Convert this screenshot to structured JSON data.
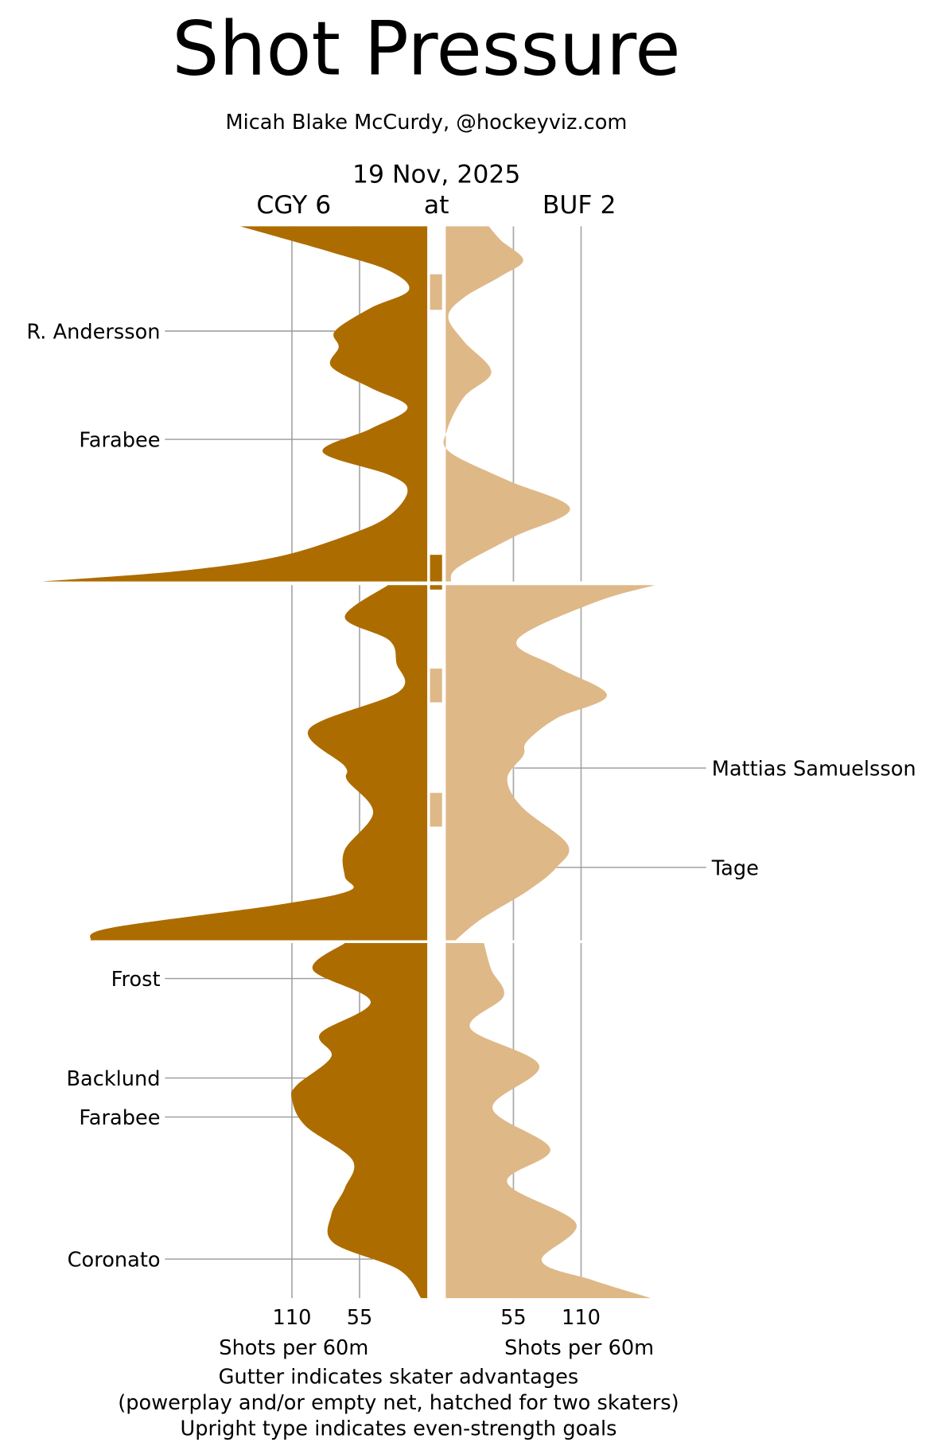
{
  "title": "Shot Pressure",
  "subtitle": "Micah Blake McCurdy, @hockeyviz.com",
  "date": "19 Nov, 2025",
  "away_label": "CGY 6",
  "at_label": "at",
  "home_label": "BUF 2",
  "footer": [
    "Gutter indicates skater advantages",
    "(powerplay and/or empty net, hatched for two skaters)",
    "Upright type indicates even-strength goals"
  ],
  "chart_data": {
    "type": "area",
    "title": "Shot Pressure",
    "xlabel_left": "Shots per 60m",
    "xlabel_right": "Shots per 60m",
    "x_ticks_left": [
      "110",
      "55"
    ],
    "x_ticks_right": [
      "55",
      "110"
    ],
    "tick_values": [
      110,
      55
    ],
    "periods": 3,
    "period_minutes": 20,
    "grid": true,
    "colors": {
      "CGY": "#AD6C00",
      "BUF": "#DFB887"
    },
    "series": [
      {
        "team": "CGY",
        "side": "left",
        "periods": [
          [
            [
              0,
              152
            ],
            [
              1.5,
              76
            ],
            [
              2.5,
              31
            ],
            [
              3.6,
              15
            ],
            [
              4.6,
              46
            ],
            [
              5.9,
              75
            ],
            [
              6.8,
              72
            ],
            [
              7.9,
              78
            ],
            [
              9.1,
              46
            ],
            [
              10.2,
              16
            ],
            [
              11.4,
              46
            ],
            [
              12.7,
              85
            ],
            [
              14.0,
              31
            ],
            [
              14.9,
              16
            ],
            [
              16.3,
              31
            ],
            [
              17.3,
              61
            ],
            [
              18.6,
              121
            ],
            [
              19.4,
              200
            ],
            [
              20,
              313
            ]
          ],
          [
            [
              0,
              32
            ],
            [
              1.8,
              67
            ],
            [
              3.1,
              31
            ],
            [
              4.4,
              25
            ],
            [
              6.0,
              23
            ],
            [
              8.1,
              96
            ],
            [
              10.2,
              67
            ],
            [
              11.0,
              65
            ],
            [
              12.8,
              44
            ],
            [
              14.9,
              67
            ],
            [
              16.4,
              67
            ],
            [
              17.2,
              63
            ],
            [
              18.0,
              121
            ],
            [
              19.3,
              257
            ],
            [
              20,
              274
            ]
          ],
          [
            [
              0,
              67
            ],
            [
              1.5,
              93
            ],
            [
              3.3,
              46
            ],
            [
              5.1,
              87
            ],
            [
              6.4,
              78
            ],
            [
              8.0,
              106
            ],
            [
              8.8,
              110
            ],
            [
              10.3,
              99
            ],
            [
              12.2,
              61
            ],
            [
              13.8,
              67
            ],
            [
              15.3,
              78
            ],
            [
              16.9,
              76
            ],
            [
              18.4,
              23
            ],
            [
              20,
              5
            ]
          ]
        ]
      },
      {
        "team": "BUF",
        "side": "right",
        "periods": [
          [
            [
              0,
              35
            ],
            [
              0.8,
              45
            ],
            [
              1.9,
              63
            ],
            [
              2.8,
              45
            ],
            [
              4.0,
              15
            ],
            [
              5.1,
              2
            ],
            [
              6.5,
              15
            ],
            [
              8.2,
              37
            ],
            [
              9.6,
              15
            ],
            [
              11.5,
              1
            ],
            [
              12.7,
              3
            ],
            [
              14.3,
              50
            ],
            [
              15.9,
              101
            ],
            [
              17.5,
              55
            ],
            [
              19.2,
              10
            ],
            [
              20,
              4
            ]
          ],
          [
            [
              0,
              170
            ],
            [
              1.0,
              120
            ],
            [
              3.1,
              58
            ],
            [
              4.6,
              90
            ],
            [
              6.2,
              131
            ],
            [
              7.5,
              90
            ],
            [
              8.8,
              66
            ],
            [
              9.6,
              63
            ],
            [
              10.9,
              50
            ],
            [
              12.5,
              62
            ],
            [
              14.6,
              99
            ],
            [
              15.9,
              90
            ],
            [
              17.2,
              67
            ],
            [
              18.8,
              29
            ],
            [
              20,
              8
            ]
          ],
          [
            [
              0,
              31
            ],
            [
              1.5,
              37
            ],
            [
              3.0,
              47
            ],
            [
              4.8,
              20
            ],
            [
              6.9,
              76
            ],
            [
              9.3,
              38
            ],
            [
              11.6,
              85
            ],
            [
              13.5,
              50
            ],
            [
              15.8,
              106
            ],
            [
              17.9,
              78
            ],
            [
              19.0,
              120
            ],
            [
              20,
              167
            ]
          ]
        ]
      }
    ],
    "advantages": [
      {
        "team": "BUF",
        "period": 1,
        "start": 2.7,
        "end": 4.7
      },
      {
        "team": "CGY",
        "period": 1,
        "start": 18.5,
        "end": 20
      },
      {
        "team": "CGY",
        "period": 2,
        "start": 0,
        "end": 0.25
      },
      {
        "team": "BUF",
        "period": 2,
        "start": 4.7,
        "end": 6.6
      },
      {
        "team": "BUF",
        "period": 2,
        "start": 11.7,
        "end": 13.6
      }
    ],
    "goals": [
      {
        "team": "CGY",
        "player": "R. Andersson",
        "period": 1,
        "minute": 5.9
      },
      {
        "team": "CGY",
        "player": "Farabee",
        "period": 1,
        "minute": 12.0
      },
      {
        "team": "BUF",
        "player": "Mattias Samuelsson",
        "period": 2,
        "minute": 10.3
      },
      {
        "team": "BUF",
        "player": "Tage",
        "period": 2,
        "minute": 15.9
      },
      {
        "team": "CGY",
        "player": "Frost",
        "period": 3,
        "minute": 2.0
      },
      {
        "team": "CGY",
        "player": "Backlund",
        "period": 3,
        "minute": 7.6
      },
      {
        "team": "CGY",
        "player": "Farabee",
        "period": 3,
        "minute": 9.8
      },
      {
        "team": "CGY",
        "player": "Coronato",
        "period": 3,
        "minute": 17.8
      }
    ]
  }
}
